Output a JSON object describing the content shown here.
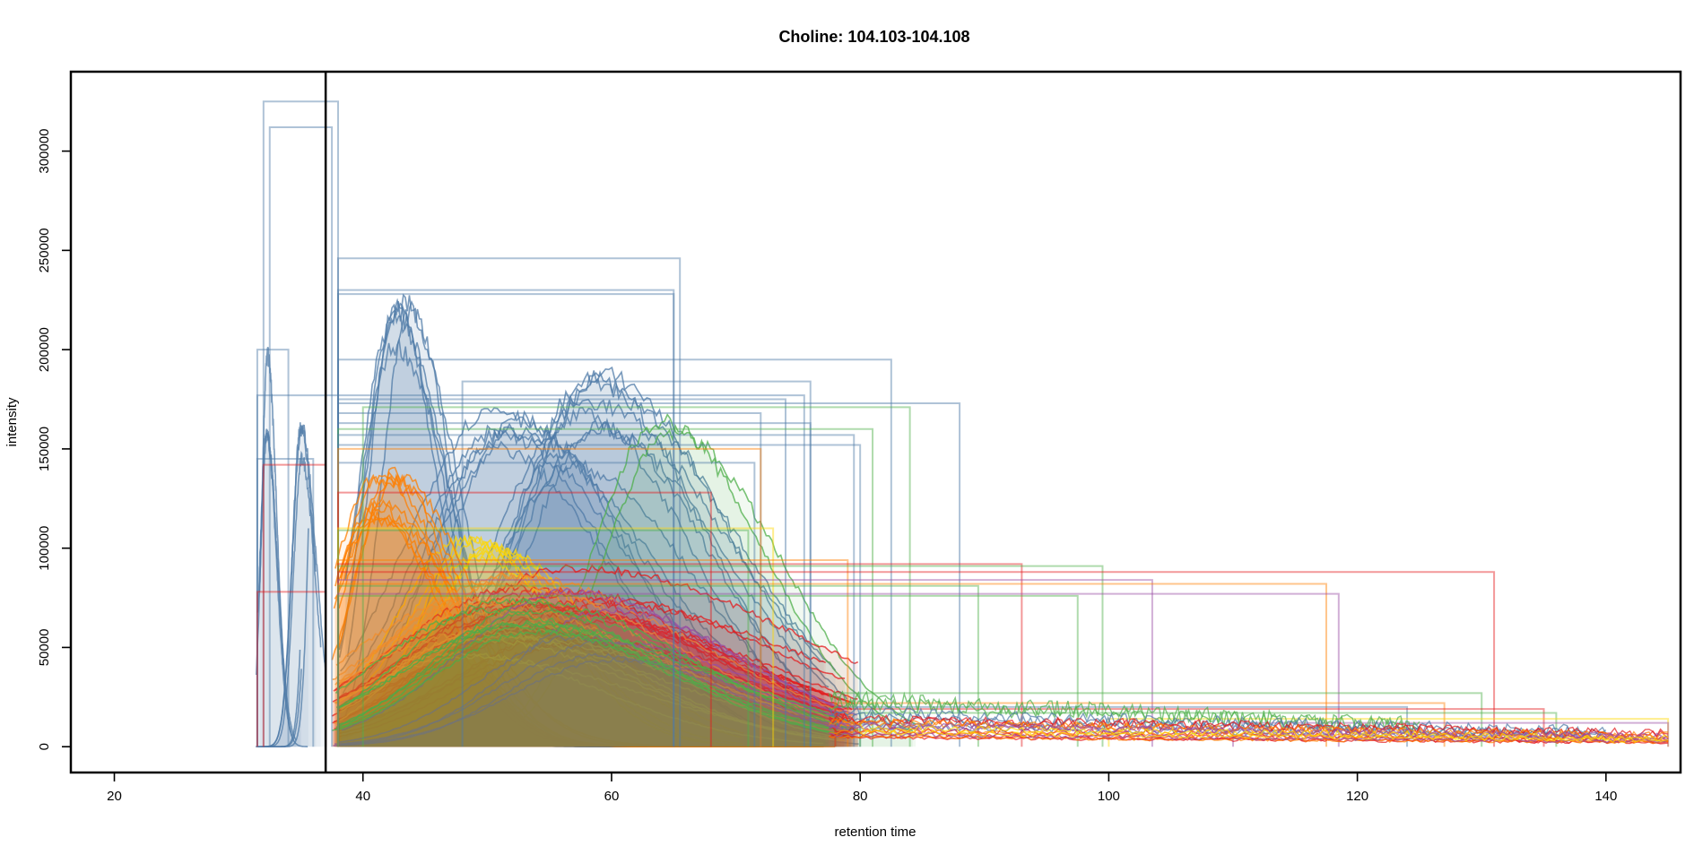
{
  "chart_data": {
    "type": "line",
    "title": "Choline: 104.103-104.108",
    "xlabel": "retention time",
    "ylabel": "intensity",
    "xlim": [
      16.5,
      146
    ],
    "ylim": [
      -13000,
      340000
    ],
    "xticks": [
      20,
      40,
      60,
      80,
      100,
      120,
      140
    ],
    "yticks": [
      0,
      50000,
      100000,
      150000,
      200000,
      250000,
      300000
    ],
    "xtick_labels": [
      "20",
      "40",
      "60",
      "80",
      "100",
      "120",
      "140"
    ],
    "ytick_labels": [
      "0",
      "50000",
      "100000",
      "150000",
      "200000",
      "250000",
      "300000"
    ],
    "vertical_marker_x": 37,
    "grid": false,
    "legend": "none",
    "palette": [
      "#4E79A7",
      "#E41A1C",
      "#FF7F00",
      "#4DAF4A",
      "#984EA3",
      "#FFD700",
      "#377EB8",
      "#F28E2B"
    ],
    "peak_groups": [
      {
        "color": "#4E79A7",
        "count": 3,
        "x0": 31.2,
        "x1": 37.8,
        "xmax": 36.3,
        "y": [
          290000,
          325000
        ],
        "w": 0.8
      },
      {
        "color": "#4E79A7",
        "count": 3,
        "x0": 31.2,
        "x1": 36.0,
        "xmax": 32.3,
        "y": [
          150000,
          200000
        ],
        "w": 0.6
      },
      {
        "color": "#4E79A7",
        "count": 3,
        "x0": 31.5,
        "x1": 38.0,
        "xmax": 35.0,
        "y": [
          120000,
          175000
        ],
        "w": 0.8
      },
      {
        "color": "#4E79A7",
        "count": 6,
        "x0": 38.0,
        "x1": 66.0,
        "xmax": 43.2,
        "y": [
          195000,
          245000
        ],
        "w": 3.0
      },
      {
        "color": "#4E79A7",
        "count": 8,
        "x0": 38.0,
        "x1": 80.0,
        "xmax": 58.5,
        "y": [
          140000,
          195000
        ],
        "w": 7.5
      },
      {
        "color": "#4E79A7",
        "count": 6,
        "x0": 38.0,
        "x1": 80.0,
        "xmax": 51.0,
        "y": [
          145000,
          170000
        ],
        "w": 8.0
      },
      {
        "color": "#4DAF4A",
        "count": 2,
        "x0": 46.0,
        "x1": 85.0,
        "xmax": 64.0,
        "y": [
          150000,
          170000
        ],
        "w": 7.5
      },
      {
        "color": "#FFD700",
        "count": 6,
        "x0": 40.0,
        "x1": 72.0,
        "xmax": 49.5,
        "y": [
          90000,
          110000
        ],
        "w": 6.0
      },
      {
        "color": "#FF7F00",
        "count": 10,
        "x0": 37.5,
        "x1": 78.0,
        "xmax": 41.5,
        "y": [
          100000,
          150000
        ],
        "w": 4.5
      },
      {
        "color": "#E41A1C",
        "count": 18,
        "x0": 37.5,
        "x1": 80.0,
        "xmax": 55.0,
        "y": [
          50000,
          95000
        ],
        "w": 12.0
      },
      {
        "color": "#F28E2B",
        "count": 14,
        "x0": 37.5,
        "x1": 80.0,
        "xmax": 50.0,
        "y": [
          45000,
          90000
        ],
        "w": 10.0
      },
      {
        "color": "#984EA3",
        "count": 6,
        "x0": 37.5,
        "x1": 80.0,
        "xmax": 58.0,
        "y": [
          40000,
          80000
        ],
        "w": 10.0
      },
      {
        "color": "#4DAF4A",
        "count": 8,
        "x0": 37.5,
        "x1": 80.0,
        "xmax": 52.0,
        "y": [
          40000,
          85000
        ],
        "w": 11.0
      }
    ],
    "tail_groups": [
      {
        "color": "#4DAF4A",
        "count": 2,
        "x0": 77.5,
        "x1": 125.0,
        "y": [
          20000,
          26000
        ]
      },
      {
        "color": "#4E79A7",
        "count": 4,
        "x0": 77.5,
        "x1": 140.0,
        "y": [
          10000,
          18000
        ]
      },
      {
        "color": "#E41A1C",
        "count": 6,
        "x0": 77.5,
        "x1": 145.0,
        "y": [
          3000,
          16000
        ]
      },
      {
        "color": "#FF7F00",
        "count": 4,
        "x0": 77.5,
        "x1": 145.0,
        "y": [
          4000,
          14000
        ]
      },
      {
        "color": "#984EA3",
        "count": 3,
        "x0": 77.5,
        "x1": 145.0,
        "y": [
          3000,
          12000
        ]
      },
      {
        "color": "#FFD700",
        "count": 2,
        "x0": 80.0,
        "x1": 145.0,
        "y": [
          5000,
          12000
        ]
      }
    ],
    "peak_rectangles": [
      {
        "color": "#4E79A7",
        "x0": 32.0,
        "x1": 38.0,
        "y": 325000
      },
      {
        "color": "#4E79A7",
        "x0": 32.5,
        "x1": 37.5,
        "y": 312000
      },
      {
        "color": "#4E79A7",
        "x0": 38.0,
        "x1": 65.5,
        "y": 246000
      },
      {
        "color": "#4E79A7",
        "x0": 38.0,
        "x1": 65.0,
        "y": 230000
      },
      {
        "color": "#4E79A7",
        "x0": 38.0,
        "x1": 65.0,
        "y": 228000
      },
      {
        "color": "#4E79A7",
        "x0": 38.0,
        "x1": 82.5,
        "y": 195000
      },
      {
        "color": "#4E79A7",
        "x0": 31.5,
        "x1": 34.0,
        "y": 200000
      },
      {
        "color": "#4E79A7",
        "x0": 48.0,
        "x1": 76.0,
        "y": 184000
      },
      {
        "color": "#4E79A7",
        "x0": 31.5,
        "x1": 75.5,
        "y": 177000
      },
      {
        "color": "#4E79A7",
        "x0": 38.0,
        "x1": 74.0,
        "y": 175000
      },
      {
        "color": "#4E79A7",
        "x0": 38.0,
        "x1": 88.0,
        "y": 173000
      },
      {
        "color": "#4DAF4A",
        "x0": 40.0,
        "x1": 84.0,
        "y": 171000
      },
      {
        "color": "#4E79A7",
        "x0": 38.0,
        "x1": 72.0,
        "y": 168000
      },
      {
        "color": "#4E79A7",
        "x0": 38.0,
        "x1": 76.0,
        "y": 163000
      },
      {
        "color": "#4DAF4A",
        "x0": 38.0,
        "x1": 81.0,
        "y": 160000
      },
      {
        "color": "#4E79A7",
        "x0": 38.0,
        "x1": 79.5,
        "y": 157000
      },
      {
        "color": "#4E79A7",
        "x0": 38.0,
        "x1": 80.0,
        "y": 152000
      },
      {
        "color": "#4E79A7",
        "x0": 31.5,
        "x1": 36.0,
        "y": 145000
      },
      {
        "color": "#4E79A7",
        "x0": 38.0,
        "x1": 71.5,
        "y": 143000
      },
      {
        "color": "#E41A1C",
        "x0": 32.0,
        "x1": 37.0,
        "y": 142000
      },
      {
        "color": "#FF7F00",
        "x0": 38.0,
        "x1": 72.0,
        "y": 150000
      },
      {
        "color": "#E41A1C",
        "x0": 38.0,
        "x1": 68.0,
        "y": 128000
      },
      {
        "color": "#FFD700",
        "x0": 38.0,
        "x1": 73.0,
        "y": 110000
      },
      {
        "color": "#4DAF4A",
        "x0": 38.0,
        "x1": 71.0,
        "y": 109000
      },
      {
        "color": "#FF7F00",
        "x0": 38.0,
        "x1": 79.0,
        "y": 94000
      },
      {
        "color": "#E41A1C",
        "x0": 38.0,
        "x1": 93.0,
        "y": 92000
      },
      {
        "color": "#4DAF4A",
        "x0": 38.0,
        "x1": 99.5,
        "y": 91000
      },
      {
        "color": "#E41A1C",
        "x0": 38.0,
        "x1": 131.0,
        "y": 88000
      },
      {
        "color": "#984EA3",
        "x0": 38.0,
        "x1": 103.5,
        "y": 84000
      },
      {
        "color": "#FF7F00",
        "x0": 38.0,
        "x1": 117.5,
        "y": 82000
      },
      {
        "color": "#4DAF4A",
        "x0": 38.0,
        "x1": 89.5,
        "y": 81000
      },
      {
        "color": "#984EA3",
        "x0": 38.0,
        "x1": 118.5,
        "y": 77000
      },
      {
        "color": "#E41A1C",
        "x0": 31.5,
        "x1": 37.0,
        "y": 78000
      },
      {
        "color": "#4DAF4A",
        "x0": 38.0,
        "x1": 97.5,
        "y": 76000
      },
      {
        "color": "#4DAF4A",
        "x0": 78.0,
        "x1": 130.0,
        "y": 27000
      },
      {
        "color": "#4E79A7",
        "x0": 78.0,
        "x1": 124.0,
        "y": 20000
      },
      {
        "color": "#FF7F00",
        "x0": 78.0,
        "x1": 127.0,
        "y": 22000
      },
      {
        "color": "#E41A1C",
        "x0": 78.0,
        "x1": 135.0,
        "y": 19000
      },
      {
        "color": "#4DAF4A",
        "x0": 80.0,
        "x1": 136.0,
        "y": 17000
      },
      {
        "color": "#FFD700",
        "x0": 100.0,
        "x1": 145.0,
        "y": 14000
      },
      {
        "color": "#984EA3",
        "x0": 110.0,
        "x1": 145.0,
        "y": 12000
      }
    ]
  }
}
